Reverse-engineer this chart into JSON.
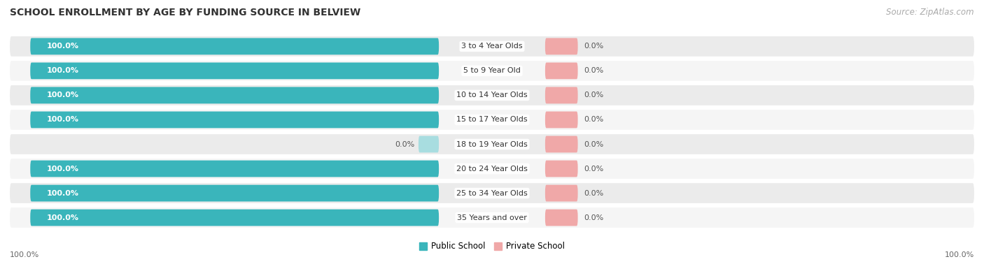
{
  "title": "SCHOOL ENROLLMENT BY AGE BY FUNDING SOURCE IN BELVIEW",
  "source": "Source: ZipAtlas.com",
  "categories": [
    "3 to 4 Year Olds",
    "5 to 9 Year Old",
    "10 to 14 Year Olds",
    "15 to 17 Year Olds",
    "18 to 19 Year Olds",
    "20 to 24 Year Olds",
    "25 to 34 Year Olds",
    "35 Years and over"
  ],
  "public_values": [
    100.0,
    100.0,
    100.0,
    100.0,
    0.0,
    100.0,
    100.0,
    100.0
  ],
  "private_values": [
    0.0,
    0.0,
    0.0,
    0.0,
    0.0,
    0.0,
    0.0,
    0.0
  ],
  "public_color": "#3ab5bb",
  "private_color": "#f0a8a8",
  "public_light_color": "#a8dde0",
  "row_bg_color_even": "#ebebeb",
  "row_bg_color_odd": "#f5f5f5",
  "legend_public": "Public School",
  "legend_private": "Private School",
  "title_fontsize": 10,
  "source_fontsize": 8.5,
  "bar_label_fontsize": 8,
  "category_fontsize": 8,
  "axis_label_fontsize": 8,
  "axis_label_left": "100.0%",
  "axis_label_right": "100.0%"
}
